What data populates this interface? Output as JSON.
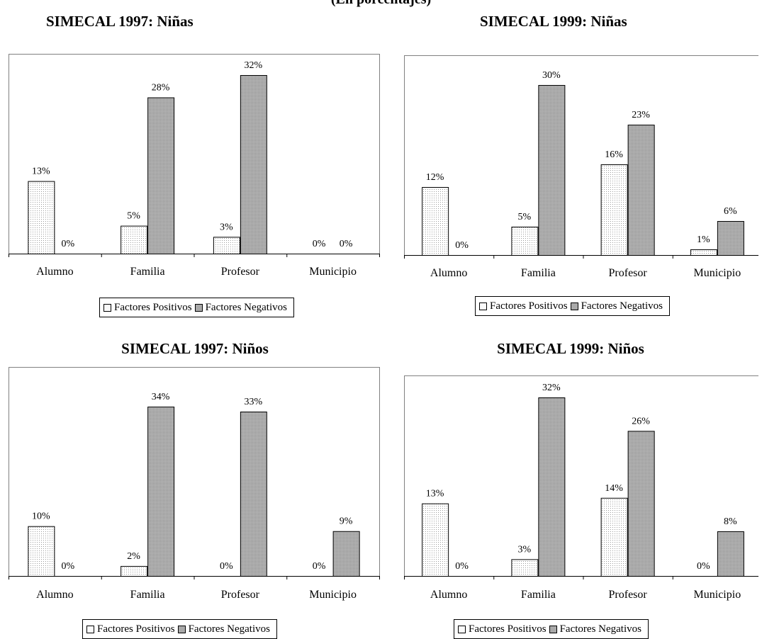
{
  "header": {
    "title": "(En porcentajes)"
  },
  "series_names": [
    "Factores Positivos",
    "Factores Negativos"
  ],
  "colors": {
    "positivos": "#f4f4f4",
    "negativos": "#a9a9a9",
    "border": "#000000"
  },
  "chart_data": [
    {
      "type": "bar",
      "title": "SIMECAL 1997: Niñas",
      "categories": [
        "Alumno",
        "Familia",
        "Profesor",
        "Municipio"
      ],
      "series": [
        {
          "name": "Factores Positivos",
          "values": [
            13,
            5,
            3,
            0
          ]
        },
        {
          "name": "Factores Negativos",
          "values": [
            0,
            28,
            32,
            0
          ]
        }
      ],
      "labels": [
        [
          "13%",
          "5%",
          "3%",
          "0%"
        ],
        [
          "0%",
          "28%",
          "32%",
          "0%"
        ]
      ],
      "ylim": [
        0,
        32
      ],
      "legend": "bottom"
    },
    {
      "type": "bar",
      "title": "SIMECAL 1999: Niñas",
      "categories": [
        "Alumno",
        "Familia",
        "Profesor",
        "Municipio"
      ],
      "series": [
        {
          "name": "Factores Positivos",
          "values": [
            12,
            5,
            16,
            1
          ]
        },
        {
          "name": "Factores Negativos",
          "values": [
            0,
            30,
            23,
            6
          ]
        }
      ],
      "labels": [
        [
          "12%",
          "5%",
          "16%",
          "1%"
        ],
        [
          "0%",
          "30%",
          "23%",
          "6%"
        ]
      ],
      "ylim": [
        0,
        30
      ],
      "legend": "bottom"
    },
    {
      "type": "bar",
      "title": "SIMECAL 1997: Niños",
      "categories": [
        "Alumno",
        "Familia",
        "Profesor",
        "Municipio"
      ],
      "series": [
        {
          "name": "Factores Positivos",
          "values": [
            10,
            2,
            0,
            0
          ]
        },
        {
          "name": "Factores Negativos",
          "values": [
            0,
            34,
            33,
            9
          ]
        }
      ],
      "labels": [
        [
          "10%",
          "2%",
          "0%",
          "0%"
        ],
        [
          "0%",
          "34%",
          "33%",
          "9%"
        ]
      ],
      "ylim": [
        0,
        34
      ],
      "legend": "bottom"
    },
    {
      "type": "bar",
      "title": "SIMECAL 1999: Niños",
      "categories": [
        "Alumno",
        "Familia",
        "Profesor",
        "Municipio"
      ],
      "series": [
        {
          "name": "Factores Positivos",
          "values": [
            13,
            3,
            14,
            0
          ]
        },
        {
          "name": "Factores Negativos",
          "values": [
            0,
            32,
            26,
            8
          ]
        }
      ],
      "labels": [
        [
          "13%",
          "3%",
          "14%",
          "0%"
        ],
        [
          "0%",
          "32%",
          "26%",
          "8%"
        ]
      ],
      "ylim": [
        0,
        32
      ],
      "legend": "bottom"
    }
  ]
}
